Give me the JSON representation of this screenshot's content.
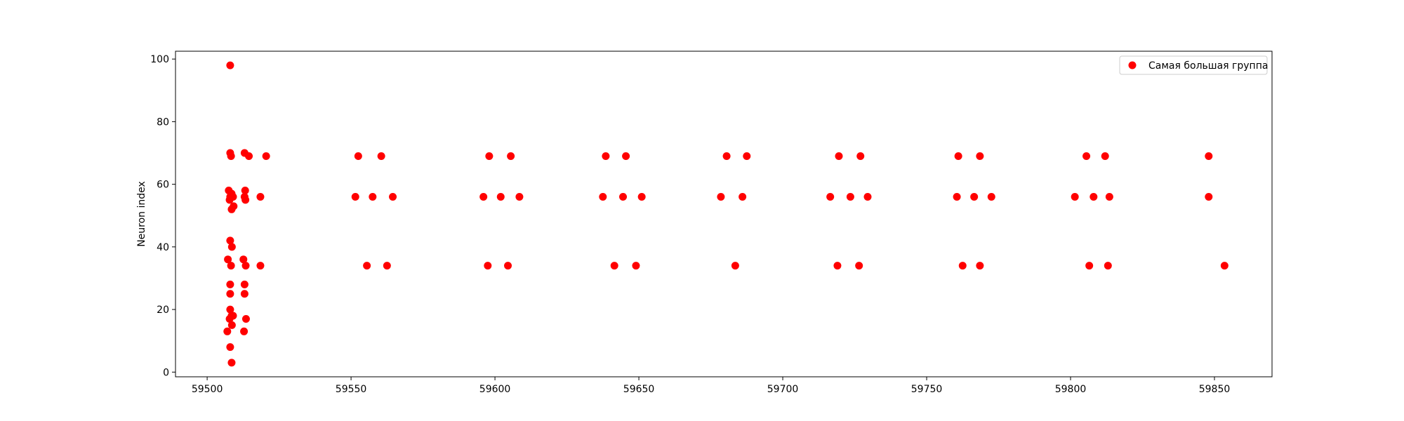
{
  "chart_data": {
    "type": "scatter",
    "title": "",
    "xlabel": "",
    "ylabel": "Neuron index",
    "xlim": [
      59489,
      59870
    ],
    "ylim": [
      -1.5,
      102.5
    ],
    "xticks": [
      59500,
      59550,
      59600,
      59650,
      59700,
      59750,
      59800,
      59850
    ],
    "yticks": [
      0,
      20,
      40,
      60,
      80,
      100
    ],
    "grid": false,
    "legend_position": "top-right",
    "series": [
      {
        "name": "Самая большая группа",
        "color": "#ff0000",
        "points": [
          [
            59508.0,
            98
          ],
          [
            59508.0,
            70
          ],
          [
            59508.3,
            69
          ],
          [
            59507.5,
            58
          ],
          [
            59508.5,
            57
          ],
          [
            59508.0,
            56
          ],
          [
            59509.0,
            56
          ],
          [
            59507.8,
            55
          ],
          [
            59509.2,
            53
          ],
          [
            59508.5,
            52
          ],
          [
            59508.0,
            42
          ],
          [
            59508.6,
            40
          ],
          [
            59507.2,
            36
          ],
          [
            59508.3,
            34
          ],
          [
            59508.0,
            28
          ],
          [
            59508.0,
            25
          ],
          [
            59508.0,
            20
          ],
          [
            59508.5,
            18
          ],
          [
            59509.0,
            18
          ],
          [
            59507.8,
            17
          ],
          [
            59508.6,
            15
          ],
          [
            59507.0,
            13
          ],
          [
            59508.0,
            8
          ],
          [
            59508.5,
            3
          ],
          [
            59513.0,
            70
          ],
          [
            59514.5,
            69
          ],
          [
            59513.2,
            58
          ],
          [
            59513.0,
            56
          ],
          [
            59513.3,
            55
          ],
          [
            59512.6,
            36
          ],
          [
            59513.4,
            34
          ],
          [
            59513.0,
            28
          ],
          [
            59513.0,
            25
          ],
          [
            59513.5,
            17
          ],
          [
            59512.8,
            13
          ],
          [
            59518.5,
            56
          ],
          [
            59518.5,
            34
          ],
          [
            59520.5,
            69
          ],
          [
            59552.5,
            69
          ],
          [
            59560.5,
            69
          ],
          [
            59551.5,
            56
          ],
          [
            59557.5,
            56
          ],
          [
            59564.5,
            56
          ],
          [
            59555.5,
            34
          ],
          [
            59562.5,
            34
          ],
          [
            59598.0,
            69
          ],
          [
            59605.5,
            69
          ],
          [
            59596.0,
            56
          ],
          [
            59602.0,
            56
          ],
          [
            59608.5,
            56
          ],
          [
            59597.5,
            34
          ],
          [
            59604.5,
            34
          ],
          [
            59638.5,
            69
          ],
          [
            59645.5,
            69
          ],
          [
            59637.5,
            56
          ],
          [
            59644.5,
            56
          ],
          [
            59651.0,
            56
          ],
          [
            59641.5,
            34
          ],
          [
            59649.0,
            34
          ],
          [
            59680.5,
            69
          ],
          [
            59687.5,
            69
          ],
          [
            59678.5,
            56
          ],
          [
            59686.0,
            56
          ],
          [
            59683.5,
            34
          ],
          [
            59719.5,
            69
          ],
          [
            59727.0,
            69
          ],
          [
            59716.5,
            56
          ],
          [
            59723.5,
            56
          ],
          [
            59729.5,
            56
          ],
          [
            59719.0,
            34
          ],
          [
            59726.5,
            34
          ],
          [
            59761.0,
            69
          ],
          [
            59768.5,
            69
          ],
          [
            59760.5,
            56
          ],
          [
            59766.5,
            56
          ],
          [
            59772.5,
            56
          ],
          [
            59762.5,
            34
          ],
          [
            59768.5,
            34
          ],
          [
            59805.5,
            69
          ],
          [
            59812.0,
            69
          ],
          [
            59801.5,
            56
          ],
          [
            59808.0,
            56
          ],
          [
            59813.5,
            56
          ],
          [
            59806.5,
            34
          ],
          [
            59813.0,
            34
          ],
          [
            59848.0,
            69
          ],
          [
            59848.0,
            56
          ],
          [
            59853.5,
            34
          ]
        ]
      }
    ]
  }
}
